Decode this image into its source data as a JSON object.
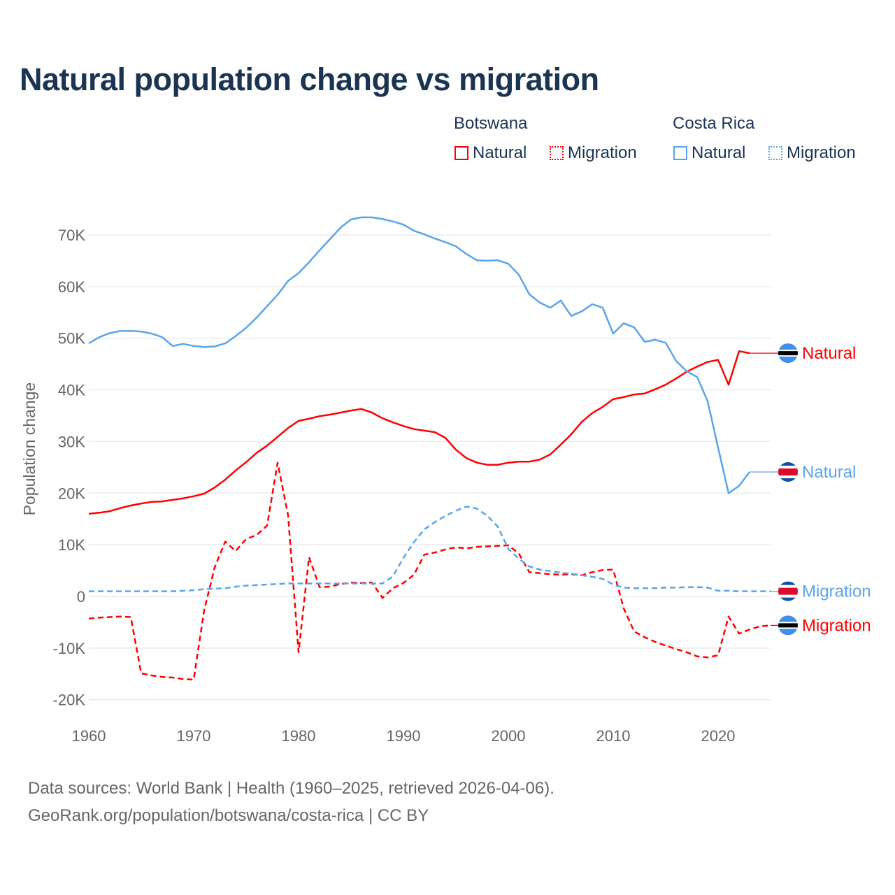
{
  "title": "Natural population change vs migration",
  "legend": {
    "groups": [
      {
        "name": "Botswana",
        "color": "#ff0000",
        "items": [
          "Natural",
          "Migration"
        ]
      },
      {
        "name": "Costa Rica",
        "color": "#5aa5ea",
        "items": [
          "Natural",
          "Migration"
        ]
      }
    ]
  },
  "footer": {
    "line1": "Data sources: World Bank | Health (1960–2025, retrieved 2026-04-06).",
    "line2": "GeoRank.org/population/botswana/costa-rica | CC BY"
  },
  "chart_data": {
    "type": "line",
    "title": "Natural population change vs migration",
    "xlabel": "",
    "ylabel": "Population change",
    "xlim": [
      1960,
      2025
    ],
    "ylim": [
      -20000,
      70000
    ],
    "x_ticks": [
      "1960",
      "1970",
      "1980",
      "1990",
      "2000",
      "2010",
      "2020"
    ],
    "y_ticks": [
      "-20K",
      "-10K",
      "0",
      "10K",
      "20K",
      "30K",
      "40K",
      "50K",
      "60K",
      "70K"
    ],
    "y_tick_values": [
      -20000,
      -10000,
      0,
      10000,
      20000,
      30000,
      40000,
      50000,
      60000,
      70000
    ],
    "grid": true,
    "start_year": 1960,
    "series": [
      {
        "name": "Botswana Natural",
        "label": "Natural",
        "color": "#ff0000",
        "dash": false,
        "flag": "botswana",
        "values": [
          16.0,
          16.2,
          16.5,
          17.1,
          17.6,
          18.0,
          18.3,
          18.4,
          18.7,
          19.0,
          19.4,
          19.9,
          21.1,
          22.6,
          24.4,
          26.0,
          27.8,
          29.2,
          30.9,
          32.6,
          34.0,
          34.4,
          34.9,
          35.2,
          35.6,
          36.0,
          36.3,
          35.6,
          34.5,
          33.7,
          33.0,
          32.4,
          32.1,
          31.8,
          30.7,
          28.4,
          26.8,
          25.9,
          25.5,
          25.5,
          25.9,
          26.1,
          26.1,
          26.5,
          27.5,
          29.4,
          31.4,
          33.8,
          35.5,
          36.7,
          38.2,
          38.6,
          39.1,
          39.3,
          40.1,
          41.0,
          42.2,
          43.5,
          44.5,
          45.4,
          45.8,
          41.0,
          47.5,
          47.1
        ]
      },
      {
        "name": "Botswana Migration",
        "label": "Migration",
        "color": "#ff0000",
        "dash": true,
        "flag": "botswana",
        "values": [
          -4.3,
          -4.1,
          -4.0,
          -3.9,
          -4.0,
          -14.9,
          -15.3,
          -15.6,
          -15.7,
          -16.0,
          -16.1,
          -2.7,
          5.6,
          10.6,
          8.8,
          11.1,
          11.9,
          13.7,
          25.9,
          15.7,
          -10.8,
          7.6,
          1.8,
          1.9,
          2.4,
          2.7,
          2.6,
          2.7,
          -0.3,
          1.6,
          2.6,
          4.2,
          8.1,
          8.5,
          9.1,
          9.5,
          9.3,
          9.6,
          9.7,
          9.8,
          9.9,
          8.3,
          4.7,
          4.5,
          4.3,
          4.2,
          4.3,
          4.1,
          4.7,
          5.1,
          5.2,
          -2.3,
          -6.8,
          -7.9,
          -8.8,
          -9.5,
          -10.2,
          -10.8,
          -11.6,
          -11.8,
          -11.4,
          -3.9,
          -7.2,
          -6.4,
          -5.8,
          -5.6
        ]
      },
      {
        "name": "Costa Rica Natural",
        "label": "Natural",
        "color": "#5aa5ea",
        "dash": false,
        "flag": "costa-rica",
        "values": [
          49.0,
          50.2,
          51.0,
          51.4,
          51.4,
          51.3,
          50.9,
          50.2,
          48.5,
          48.9,
          48.5,
          48.3,
          48.4,
          49.0,
          50.4,
          52.0,
          54.0,
          56.2,
          58.4,
          61.1,
          62.6,
          64.7,
          67.0,
          69.2,
          71.4,
          73.0,
          73.4,
          73.4,
          73.1,
          72.6,
          72.0,
          70.8,
          70.1,
          69.3,
          68.6,
          67.8,
          66.3,
          65.1,
          65.0,
          65.1,
          64.4,
          62.3,
          58.5,
          56.9,
          55.9,
          57.3,
          54.3,
          55.2,
          56.6,
          55.9,
          50.9,
          52.9,
          52.1,
          49.3,
          49.7,
          49.1,
          45.6,
          43.6,
          42.5,
          37.8,
          28.8,
          20.0,
          21.4,
          24.1
        ]
      },
      {
        "name": "Costa Rica Migration",
        "label": "Migration",
        "color": "#5aa5ea",
        "dash": true,
        "flag": "costa-rica",
        "values": [
          1.0,
          1.0,
          1.0,
          1.0,
          1.0,
          1.0,
          1.0,
          1.0,
          1.0,
          1.1,
          1.2,
          1.4,
          1.5,
          1.6,
          1.9,
          2.1,
          2.2,
          2.3,
          2.4,
          2.5,
          2.5,
          2.5,
          2.5,
          2.5,
          2.5,
          2.5,
          2.5,
          2.5,
          2.5,
          3.9,
          7.5,
          10.5,
          13.0,
          14.4,
          15.6,
          16.6,
          17.4,
          17.0,
          15.6,
          13.5,
          9.2,
          7.3,
          5.8,
          5.2,
          4.9,
          4.6,
          4.4,
          4.1,
          3.8,
          3.4,
          2.3,
          1.7,
          1.6,
          1.6,
          1.6,
          1.7,
          1.7,
          1.8,
          1.8,
          1.7,
          1.1,
          1.1,
          1.0,
          1.0,
          1.0,
          1.0
        ]
      }
    ],
    "value_units": "thousands"
  }
}
